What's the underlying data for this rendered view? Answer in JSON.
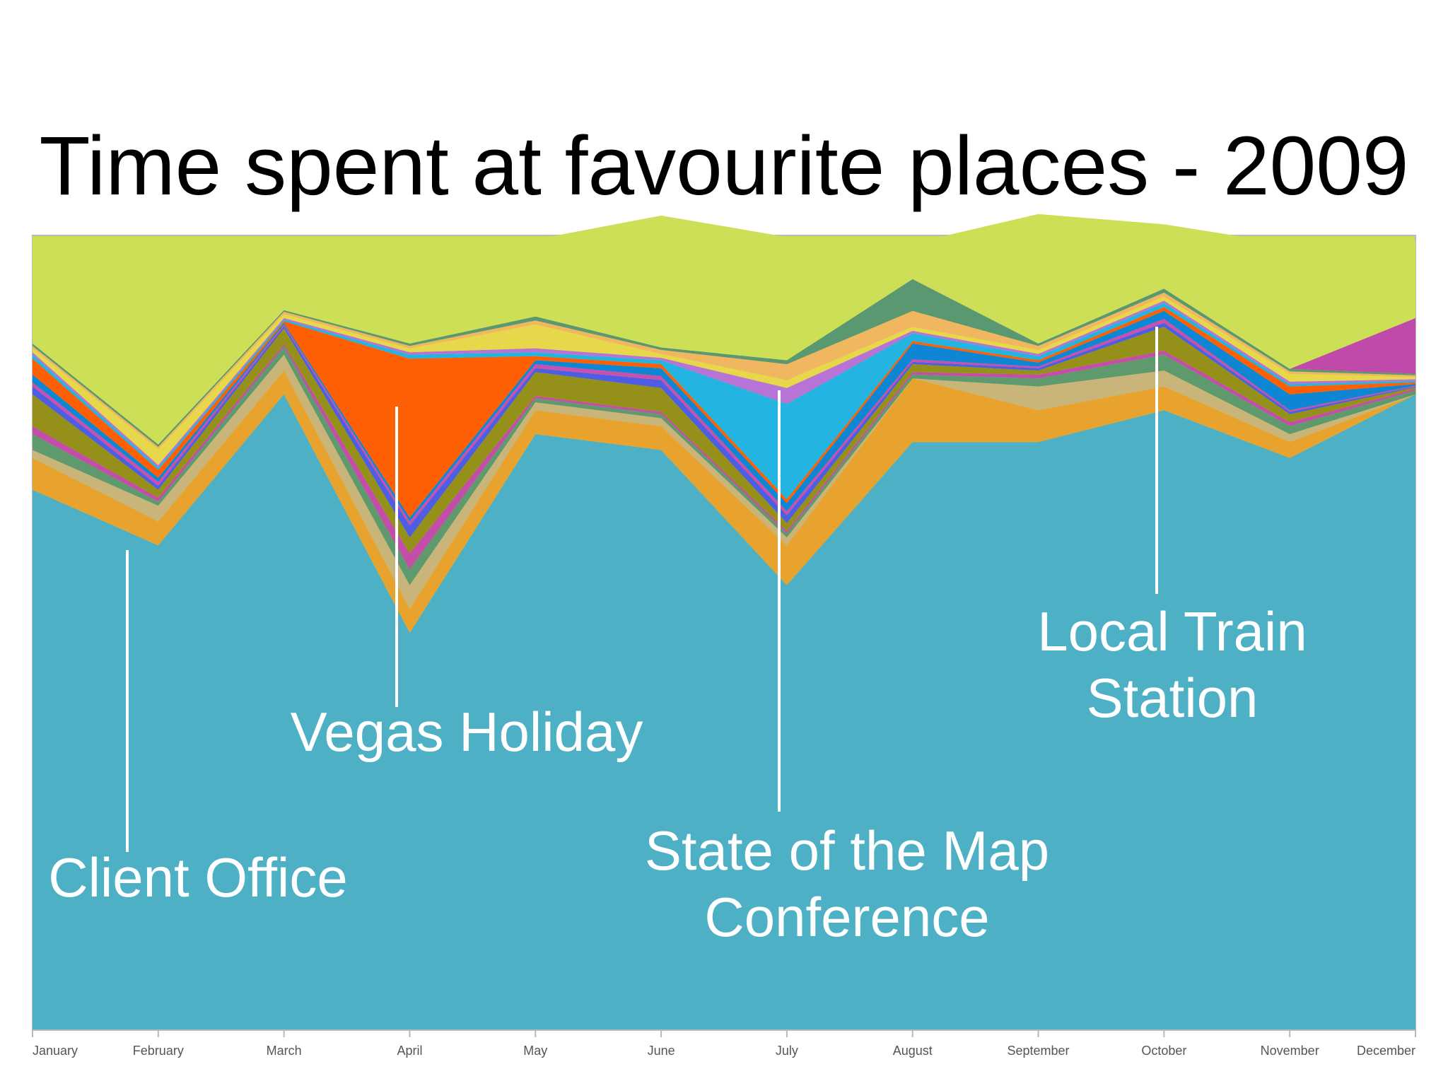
{
  "chart_data": {
    "type": "area",
    "stacked": true,
    "title": "Time spent at favourite places - 2009",
    "xlabel": "",
    "ylabel": "",
    "ylim": [
      0,
      100
    ],
    "grid": false,
    "legend": "none",
    "categories": [
      "January",
      "February",
      "March",
      "April",
      "May",
      "June",
      "July",
      "August",
      "September",
      "October",
      "November",
      "December"
    ],
    "series": [
      {
        "values": [
          68,
          61,
          80,
          50,
          75,
          73,
          56,
          74,
          74,
          78,
          72,
          80
        ],
        "color": "#4db0c5"
      },
      {
        "values": [
          4,
          3,
          3,
          3,
          3,
          3,
          5,
          8,
          4,
          3,
          2,
          0
        ],
        "color": "#e8a32e"
      },
      {
        "values": [
          1,
          2,
          2,
          3,
          1,
          1,
          1,
          0,
          3,
          2,
          1,
          0
        ],
        "color": "#c9b57a"
      },
      {
        "values": [
          2,
          0.5,
          1,
          2,
          0.5,
          0.5,
          0.5,
          0.5,
          1,
          2,
          1,
          0.5
        ],
        "color": "#5e9a6e"
      },
      {
        "values": [
          1,
          0.5,
          0.3,
          2,
          0.3,
          0.3,
          0.3,
          0.3,
          0.5,
          0.5,
          0.5,
          0.2
        ],
        "color": "#c24ea9"
      },
      {
        "values": [
          4,
          1,
          2,
          2,
          3,
          3,
          1,
          1,
          0.5,
          3,
          1,
          0.2
        ],
        "color": "#95901a"
      },
      {
        "values": [
          1,
          0.5,
          0.3,
          1.5,
          0.5,
          1,
          1,
          0.3,
          0.3,
          0.5,
          0.3,
          0.1
        ],
        "color": "#4d5ee3"
      },
      {
        "values": [
          0.5,
          0.5,
          0.2,
          0.5,
          0.5,
          0.5,
          0.5,
          0.3,
          0.2,
          0.5,
          0.2,
          0.1
        ],
        "color": "#c94fb0"
      },
      {
        "values": [
          1,
          0.5,
          0.2,
          0.5,
          0.5,
          1,
          1,
          2,
          0.5,
          1,
          2,
          0.2
        ],
        "color": "#0f86d4"
      },
      {
        "values": [
          2,
          1,
          0.2,
          20,
          0.5,
          0.5,
          0.5,
          0.3,
          0.3,
          0.5,
          1,
          0.2
        ],
        "color": "#fe5e04"
      },
      {
        "values": [
          0.5,
          0.3,
          0.2,
          0.5,
          0.5,
          0.5,
          12,
          1,
          0.5,
          0.5,
          0.3,
          0.2
        ],
        "color": "#24b4e2"
      },
      {
        "values": [
          0.3,
          0.3,
          0.2,
          0.3,
          0.5,
          0.3,
          2,
          0.3,
          0.3,
          0.3,
          0.3,
          0.2
        ],
        "color": "#b873d6"
      },
      {
        "values": [
          0.5,
          2,
          0.5,
          0.5,
          3,
          0.5,
          1,
          0.5,
          0.5,
          0.5,
          1,
          0.3
        ],
        "color": "#e6d84a"
      },
      {
        "values": [
          0.3,
          0.3,
          0.3,
          0.3,
          0.5,
          0.5,
          2,
          2,
          0.5,
          0.5,
          0.3,
          0.2
        ],
        "color": "#f0b760"
      },
      {
        "values": [
          0.3,
          0.3,
          0.2,
          0.3,
          0.5,
          0.3,
          0.5,
          4,
          0.3,
          0.5,
          0.3,
          0.2
        ],
        "color": "#5a9872"
      },
      {
        "values": [
          0,
          0,
          0,
          0,
          0,
          0,
          0,
          0,
          0,
          0,
          0,
          7
        ],
        "color": "#c04aa9"
      },
      {
        "values": [
          13.5,
          26,
          9.3,
          12.5,
          9.7,
          16.6,
          15.5,
          4.5,
          16.3,
          8.1,
          15.7,
          9.7
        ],
        "color": "#cddf56"
      }
    ],
    "annotations": [
      {
        "lines": [
          "Client Office"
        ],
        "x": "February"
      },
      {
        "lines": [
          "Vegas Holiday"
        ],
        "x": "April"
      },
      {
        "lines": [
          "State of the Map",
          "Conference"
        ],
        "x": "July"
      },
      {
        "lines": [
          "Local Train",
          "Station"
        ],
        "x": "October"
      }
    ]
  }
}
